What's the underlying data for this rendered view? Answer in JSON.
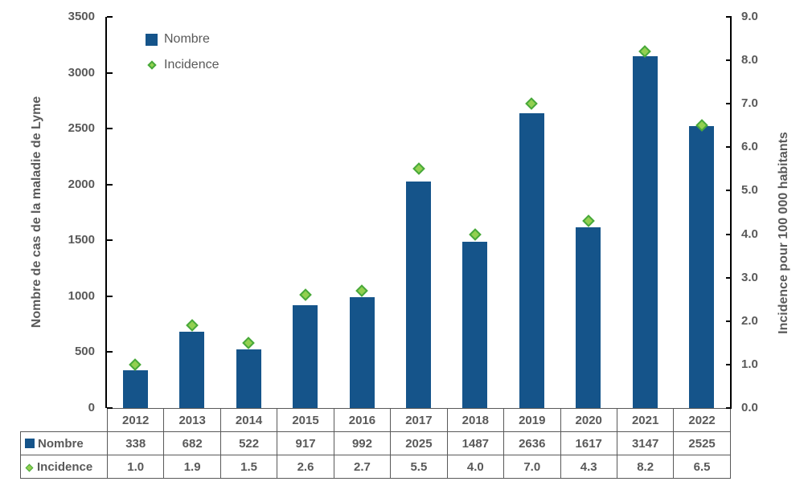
{
  "chart_data": {
    "type": "bar",
    "subtype": "combo-bar-scatter",
    "categories": [
      "2012",
      "2013",
      "2014",
      "2015",
      "2016",
      "2017",
      "2018",
      "2019",
      "2020",
      "2021",
      "2022"
    ],
    "series": [
      {
        "name": "Nombre",
        "type": "bar",
        "axis": "left",
        "values": [
          338,
          682,
          522,
          917,
          992,
          2025,
          1487,
          2636,
          1617,
          3147,
          2525
        ],
        "color": "#15548A"
      },
      {
        "name": "Incidence",
        "type": "scatter",
        "marker": "diamond",
        "axis": "right",
        "values": [
          1.0,
          1.9,
          1.5,
          2.6,
          2.7,
          5.5,
          4.0,
          7.0,
          4.3,
          8.2,
          6.5
        ],
        "fill": "#92D050",
        "stroke": "#47A83B"
      }
    ],
    "left_axis": {
      "title": "Nombre de cas de la maladie de Lyme",
      "min": 0,
      "max": 3500,
      "step": 500,
      "tick_labels": [
        "0",
        "500",
        "1000",
        "1500",
        "2000",
        "2500",
        "3000",
        "3500"
      ]
    },
    "right_axis": {
      "title": "Incidence pour 100 000 habitants",
      "min": 0,
      "max": 9.0,
      "step": 1.0,
      "tick_labels": [
        "0.0",
        "1.0",
        "2.0",
        "3.0",
        "4.0",
        "5.0",
        "6.0",
        "7.0",
        "8.0",
        "9.0"
      ]
    },
    "legend": {
      "position": "top-left-inside",
      "items": [
        {
          "label": "Nombre",
          "marker": "square",
          "color": "#15548A"
        },
        {
          "label": "Incidence",
          "marker": "diamond",
          "fill": "#92D050",
          "stroke": "#47A83B"
        }
      ]
    },
    "grid": false,
    "data_table": {
      "rows": [
        {
          "label": "Nombre",
          "marker": "square",
          "values": [
            "338",
            "682",
            "522",
            "917",
            "992",
            "2025",
            "1487",
            "2636",
            "1617",
            "3147",
            "2525"
          ]
        },
        {
          "label": "Incidence",
          "marker": "diamond",
          "values": [
            "1.0",
            "1.9",
            "1.5",
            "2.6",
            "2.7",
            "5.5",
            "4.0",
            "7.0",
            "4.3",
            "8.2",
            "6.5"
          ]
        }
      ]
    },
    "colors": {
      "bar": "#15548A",
      "diamond_fill": "#92D050",
      "diamond_stroke": "#47A83B",
      "text": "#595959",
      "axis_line": "#000000",
      "table_border": "#595959"
    }
  }
}
